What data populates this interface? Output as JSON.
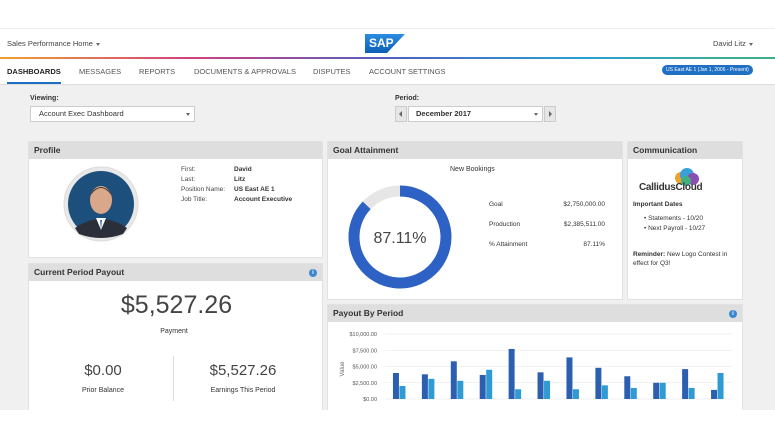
{
  "header": {
    "home_menu": "Sales Performance Home",
    "logo": "SAP",
    "user": "David Litz"
  },
  "nav": {
    "tabs": [
      "DASHBOARDS",
      "MESSAGES",
      "REPORTS",
      "DOCUMENTS & APPROVALS",
      "DISPUTES",
      "ACCOUNT SETTINGS"
    ],
    "active_tab": 0,
    "badge": "US East AE 1 (Jan 1, 2006 - Present)"
  },
  "filters": {
    "viewing_label": "Viewing:",
    "viewing_value": "Account Exec Dashboard",
    "period_label": "Period:",
    "period_value": "December 2017"
  },
  "profile": {
    "title": "Profile",
    "fields": [
      [
        "First:",
        "David"
      ],
      [
        "Last:",
        "Litz"
      ],
      [
        "Position Name:",
        "US East AE 1"
      ],
      [
        "Job Title:",
        "Account Executive"
      ]
    ]
  },
  "goal": {
    "title": "Goal Attainment",
    "subtitle": "New Bookings",
    "attainment": {
      "value": 87.11,
      "label": "87.11%"
    },
    "rows": [
      [
        "Goal",
        "$2,750,000.00"
      ],
      [
        "Production",
        "$2,385,511.00"
      ],
      [
        "% Attainment",
        "87.11%"
      ]
    ]
  },
  "communication": {
    "title": "Communication",
    "logo": "CallidusCloud",
    "dates_title": "Important Dates",
    "dates": [
      "Statements - 10/20",
      "Next Payroll - 10/27"
    ],
    "reminder_label": "Reminder:",
    "reminder_text": "New Logo Contest in effect for Q3!"
  },
  "payout": {
    "title": "Current Period Payout",
    "amount": "$5,527.26",
    "amount_label": "Payment",
    "items": [
      [
        "$0.00",
        "Prior Balance"
      ],
      [
        "$5,527.26",
        "Earnings This Period"
      ]
    ]
  },
  "chart_data": {
    "type": "bar",
    "title": "Payout By Period",
    "y_label": "Value",
    "categories": [
      null,
      null,
      null,
      null,
      null,
      null,
      null,
      null,
      null,
      null,
      null,
      null
    ],
    "series": [
      {
        "color": "#2d5fb0",
        "values": [
          4000,
          3800,
          5800,
          3700,
          7700,
          4100,
          6400,
          4800,
          3500,
          2500,
          4600,
          1400
        ]
      },
      {
        "color": "#2f9ad3",
        "values": [
          2000,
          3100,
          2800,
          4500,
          1500,
          2800,
          1500,
          2100,
          1700,
          2500,
          1700,
          4000
        ]
      }
    ],
    "ylim": [
      0,
      10000
    ],
    "yticks": [
      {
        "value": 0,
        "label": "$0.00"
      },
      {
        "value": 2500,
        "label": "$2,500.00"
      },
      {
        "value": 5000,
        "label": "$5,000.00"
      },
      {
        "value": 7500,
        "label": "$7,500.00"
      },
      {
        "value": 10000,
        "label": "$10,000.00"
      }
    ],
    "grid": true
  }
}
